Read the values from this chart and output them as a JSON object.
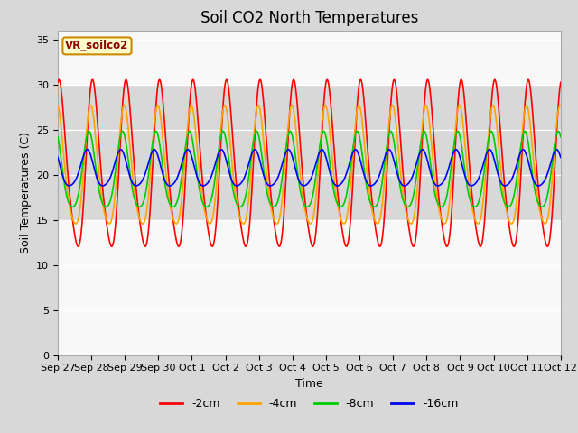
{
  "title": "Soil CO2 North Temperatures",
  "xlabel": "Time",
  "ylabel": "Soil Temperatures (C)",
  "yticks": [
    0,
    5,
    10,
    15,
    20,
    25,
    30,
    35
  ],
  "ylim": [
    0,
    36
  ],
  "xlim": [
    0,
    15
  ],
  "xtick_labels": [
    "Sep 27",
    "Sep 28",
    "Sep 29",
    "Sep 30",
    "Oct 1",
    "Oct 2",
    "Oct 3",
    "Oct 4",
    "Oct 5",
    "Oct 6",
    "Oct 7",
    "Oct 8",
    "Oct 9",
    "Oct 10",
    "Oct 11",
    "Oct 12"
  ],
  "legend_label": "VR_soilco2",
  "series_labels": [
    "-2cm",
    "-4cm",
    "-8cm",
    "-16cm"
  ],
  "series_colors": [
    "#ff0000",
    "#ffa500",
    "#00cc00",
    "#0000ff"
  ],
  "line_width": 1.2,
  "shaded_band": [
    15,
    30
  ],
  "shaded_color": "#d8d8d8",
  "outer_background": "#d8d8d8",
  "plot_background": "#f8f8f8",
  "title_fontsize": 12,
  "axis_label_fontsize": 9,
  "tick_fontsize": 8,
  "n_points": 1000,
  "base_2cm": 20.5,
  "amp_2cm": 9.0,
  "phase_2cm": 1.2,
  "base_4cm": 20.3,
  "amp_4cm": 6.5,
  "phase_4cm": 1.6,
  "base_8cm": 20.0,
  "amp_8cm": 4.2,
  "phase_8cm": 2.0,
  "base_16cm": 20.5,
  "amp_16cm": 2.0,
  "phase_16cm": 2.4,
  "period": 1.0
}
